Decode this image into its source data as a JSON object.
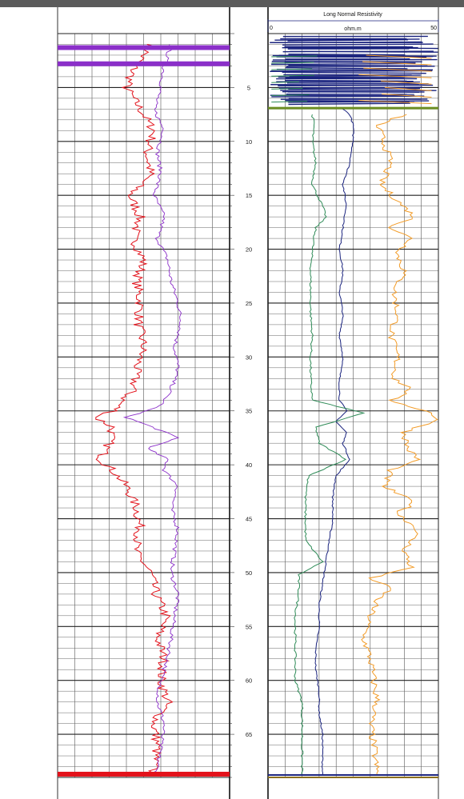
{
  "chart_data": [
    {
      "type": "line",
      "track": "left-log-track",
      "title": "",
      "xlabel": "",
      "ylabel": "",
      "series": [
        {
          "color": "#e3121b",
          "y": [
            1,
            3,
            5,
            7,
            9,
            11,
            13,
            15,
            17,
            19,
            21,
            23,
            25,
            27,
            29,
            31,
            33,
            34,
            35,
            35.6,
            36.5,
            38,
            39.5,
            40.5,
            42,
            44,
            46,
            48,
            50,
            52,
            54,
            56,
            58,
            60,
            62,
            64,
            66,
            68,
            68.8
          ],
          "x": [
            55,
            45,
            40,
            48,
            56,
            52,
            54,
            42,
            48,
            44,
            50,
            46,
            48,
            47,
            50,
            46,
            44,
            38,
            33,
            22,
            32,
            30,
            25,
            32,
            40,
            46,
            48,
            45,
            54,
            57,
            63,
            58,
            62,
            60,
            64,
            56,
            58,
            56,
            54
          ]
        },
        {
          "color": "#8b2fc9",
          "y": [
            1,
            3,
            5,
            7,
            9,
            11,
            13,
            15,
            17,
            19,
            21,
            23,
            25,
            27,
            29,
            31,
            33,
            34.5,
            35.6,
            36.5,
            37.5,
            38.5,
            39.5,
            40.5,
            42,
            44,
            46,
            48,
            50,
            52,
            54,
            56,
            58,
            60,
            62,
            64,
            66,
            68,
            68.8
          ],
          "x": [
            66,
            62,
            60,
            56,
            62,
            58,
            60,
            56,
            62,
            58,
            64,
            66,
            70,
            72,
            68,
            70,
            66,
            60,
            40,
            55,
            70,
            52,
            64,
            62,
            70,
            66,
            70,
            68,
            66,
            70,
            68,
            66,
            64,
            60,
            58,
            62,
            60,
            58,
            56
          ]
        }
      ],
      "bands": [
        {
          "color": "#8b2fc9",
          "depth": 1.3
        },
        {
          "color": "#8b2fc9",
          "depth": 2.8
        },
        {
          "color": "#e3121b",
          "depth": 68.7
        }
      ]
    },
    {
      "type": "line",
      "track": "right-log-track",
      "title": "Long Normal Resistivity",
      "unit": "ohm.m",
      "xlim": [
        0,
        50
      ],
      "ticks": [
        "0",
        "50"
      ],
      "series": [
        {
          "color": "#1a237e",
          "y": [
            7,
            7.5,
            8.5,
            10,
            12,
            14,
            16,
            18,
            20,
            22,
            24,
            26,
            28,
            30,
            32,
            34,
            35,
            36,
            37,
            38,
            39.5,
            41,
            43,
            45,
            47,
            49,
            51,
            53,
            55,
            57,
            59,
            61,
            63,
            65,
            67,
            68.8
          ],
          "x": [
            22,
            24,
            25,
            25,
            24,
            22,
            23,
            22,
            21,
            22,
            21,
            22,
            21,
            22,
            21,
            21,
            23,
            20,
            23,
            22,
            24,
            20,
            19,
            19,
            18,
            17,
            16,
            15,
            15,
            14,
            14,
            15,
            15,
            16,
            16,
            16
          ]
        },
        {
          "color": "#2e8b57",
          "y": [
            7.5,
            8.5,
            10,
            12,
            14,
            16,
            17,
            18,
            20,
            22,
            24,
            26,
            28,
            30,
            32,
            34,
            35.2,
            36.5,
            38,
            39.5,
            41,
            43,
            45,
            47,
            49,
            50.2,
            52,
            54,
            56,
            58,
            60,
            62,
            64,
            66,
            68.8
          ],
          "x": [
            13,
            13.5,
            13,
            14,
            13,
            16,
            17,
            14,
            13,
            12.5,
            12.5,
            12.5,
            13,
            12.5,
            12.5,
            13,
            28,
            14,
            15,
            23,
            12,
            11,
            11,
            11,
            16,
            9,
            9,
            8,
            8,
            8,
            8,
            10,
            10,
            10,
            10
          ]
        },
        {
          "color": "#f39c28",
          "y": [
            7.5,
            8.5,
            10,
            12,
            14,
            15.5,
            17,
            18,
            19,
            20.5,
            22,
            24,
            26,
            28,
            30,
            32,
            33,
            34,
            35.2,
            35.8,
            37,
            38.5,
            39.5,
            40.5,
            42,
            43.5,
            44.5,
            46,
            48,
            49.5,
            50.5,
            51.5,
            52.5,
            54,
            56,
            58,
            60,
            62,
            64,
            66,
            68.8
          ],
          "x": [
            40,
            32,
            34,
            36,
            33,
            38,
            43,
            36,
            42,
            38,
            40,
            37,
            38,
            36,
            38,
            37,
            42,
            36,
            48,
            50,
            40,
            41,
            44,
            36,
            34,
            43,
            38,
            44,
            40,
            42,
            30,
            36,
            32,
            30,
            28,
            30,
            31,
            32,
            30,
            31,
            32
          ]
        }
      ]
    },
    {
      "type": "line",
      "track": "depth-track",
      "ylim": [
        0,
        69
      ],
      "depth_ticks": [
        "5",
        "10",
        "15",
        "20",
        "25",
        "30",
        "35",
        "40",
        "45",
        "50",
        "55",
        "60",
        "65"
      ]
    }
  ]
}
